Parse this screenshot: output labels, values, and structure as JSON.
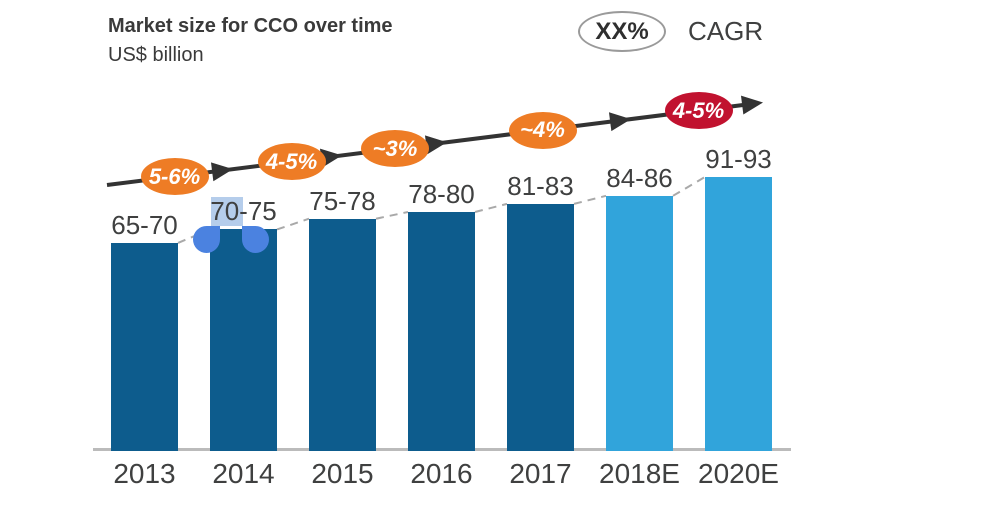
{
  "header": {
    "title": "Market size for CCO over time",
    "subtitle": "US$ billion"
  },
  "legend": {
    "badge_label": "XX%",
    "label": "CAGR",
    "position": "top-right"
  },
  "chart_data": {
    "type": "bar",
    "title": "Market size for CCO over time",
    "ylabel": "US$ billion",
    "xlabel": "",
    "grid": false,
    "categories": [
      "2013",
      "2014",
      "2015",
      "2016",
      "2017",
      "2018E",
      "2020E"
    ],
    "bar_labels": [
      "65-70",
      "70-75",
      "75-78",
      "78-80",
      "81-83",
      "84-86",
      "91-93"
    ],
    "values_mid": [
      67.5,
      72.5,
      76.5,
      79,
      82,
      85,
      92
    ],
    "bar_colors": [
      "#0d5c8d",
      "#0d5c8d",
      "#0d5c8d",
      "#0d5c8d",
      "#0d5c8d",
      "#31a4db",
      "#31a4db"
    ],
    "actual_color": "#0d5c8d",
    "estimate_color": "#31a4db",
    "top_connector": "dashed gray line linking successive bar tops",
    "growth_annotations": [
      {
        "label": "5-6%",
        "color": "#ee7c25"
      },
      {
        "label": "4-5%",
        "color": "#ee7c25"
      },
      {
        "label": "~3%",
        "color": "#ee7c25"
      },
      {
        "label": "~4%",
        "color": "#ee7c25"
      },
      {
        "label": "4-5%",
        "color": "#c1122f"
      }
    ],
    "arrow_color": "#333333",
    "axis_line_color": "#bbbbbb",
    "connector_color": "#a9a9a9",
    "label_color": "#3f4040"
  },
  "selection_artifact": {
    "selected_text": "70",
    "on_label": "70-75",
    "handle_color": "#4b82e0",
    "highlight_color": "rgba(90,145,210,0.45)",
    "left_handle_icon": "text-selection-handle-left",
    "right_handle_icon": "text-selection-handle-right"
  }
}
